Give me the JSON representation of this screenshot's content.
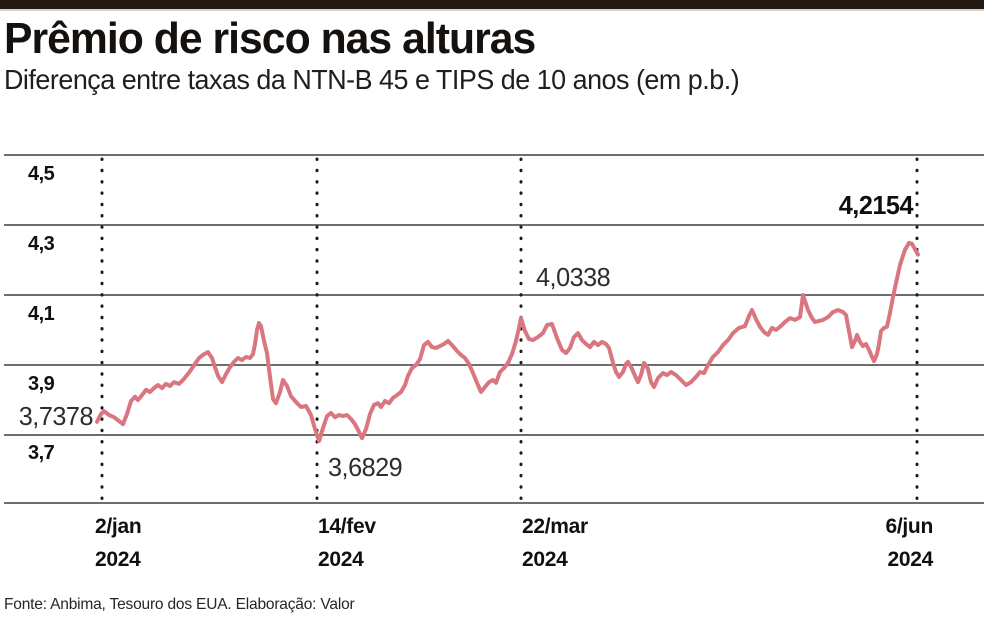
{
  "header": {
    "title": "Prêmio de risco nas alturas",
    "subtitle": "Diferença entre taxas da NTN-B 45 e TIPS de 10 anos (em p.b.)"
  },
  "footer": {
    "source": "Fonte: Anbima, Tesouro dos EUA. Elaboração: Valor"
  },
  "colors": {
    "line": "#d9767f",
    "grid": "#6e6e6e",
    "dotted_guides": "#1b1b1b",
    "top_bar": "#221813",
    "text": "#101010"
  },
  "chart_data": {
    "type": "line",
    "title": "Prêmio de risco nas alturas",
    "subtitle": "Diferença entre taxas da NTN-B 45 e TIPS de 10 anos (em p.b.)",
    "unit": "p.b.",
    "ylim": [
      3.5,
      4.55
    ],
    "grid": "horizontal solid gray lines; vertical dotted guides at labeled dates",
    "legend_position": "none",
    "y_ticks": [
      {
        "label": "4,5",
        "value": 4.5
      },
      {
        "label": "4,3",
        "value": 4.3
      },
      {
        "label": "4,1",
        "value": 4.1
      },
      {
        "label": "3,9",
        "value": 3.9
      },
      {
        "label": "3,7",
        "value": 3.7
      }
    ],
    "x_ticks": [
      {
        "label": "2/jan",
        "year": "2024"
      },
      {
        "label": "14/fev",
        "year": "2024"
      },
      {
        "label": "22/mar",
        "year": "2024"
      },
      {
        "label": "6/jun",
        "year": "2024"
      }
    ],
    "annotations": [
      {
        "text": "3,7378",
        "value": 3.7378,
        "at": "2/jan/2024",
        "style": "regular"
      },
      {
        "text": "3,6829",
        "value": 3.6829,
        "at": "14/fev/2024",
        "style": "regular"
      },
      {
        "text": "4,0338",
        "value": 4.0338,
        "at": "22/mar/2024",
        "style": "regular"
      },
      {
        "text": "4,2154",
        "value": 4.2154,
        "at": "6/jun/2024",
        "style": "bold"
      }
    ],
    "series": [
      {
        "name": "Diferença NTN-B 45 − TIPS 10 anos (em p.b.)",
        "color": "#d9767f",
        "points_format": "[x_px_along_time_axis, value]",
        "points": [
          [
            97,
            3.7378
          ],
          [
            101,
            3.76
          ],
          [
            104,
            3.768
          ],
          [
            109,
            3.757
          ],
          [
            114,
            3.751
          ],
          [
            119,
            3.74
          ],
          [
            123,
            3.731
          ],
          [
            127,
            3.76
          ],
          [
            131,
            3.797
          ],
          [
            135,
            3.809
          ],
          [
            138,
            3.8
          ],
          [
            142,
            3.814
          ],
          [
            146,
            3.829
          ],
          [
            150,
            3.823
          ],
          [
            154,
            3.834
          ],
          [
            158,
            3.843
          ],
          [
            162,
            3.834
          ],
          [
            166,
            3.846
          ],
          [
            170,
            3.84
          ],
          [
            174,
            3.851
          ],
          [
            179,
            3.846
          ],
          [
            183,
            3.857
          ],
          [
            187,
            3.871
          ],
          [
            191,
            3.886
          ],
          [
            195,
            3.903
          ],
          [
            199,
            3.92
          ],
          [
            203,
            3.929
          ],
          [
            208,
            3.937
          ],
          [
            212,
            3.92
          ],
          [
            215,
            3.894
          ],
          [
            218,
            3.869
          ],
          [
            222,
            3.851
          ],
          [
            226,
            3.874
          ],
          [
            230,
            3.894
          ],
          [
            234,
            3.909
          ],
          [
            238,
            3.92
          ],
          [
            242,
            3.914
          ],
          [
            246,
            3.923
          ],
          [
            250,
            3.92
          ],
          [
            253,
            3.931
          ],
          [
            255,
            3.96
          ],
          [
            257,
            4.0
          ],
          [
            259,
            4.02
          ],
          [
            261,
            4.011
          ],
          [
            264,
            3.969
          ],
          [
            267,
            3.934
          ],
          [
            270,
            3.866
          ],
          [
            273,
            3.803
          ],
          [
            276,
            3.791
          ],
          [
            280,
            3.823
          ],
          [
            283,
            3.857
          ],
          [
            287,
            3.84
          ],
          [
            291,
            3.811
          ],
          [
            296,
            3.794
          ],
          [
            301,
            3.78
          ],
          [
            306,
            3.783
          ],
          [
            311,
            3.757
          ],
          [
            315,
            3.717
          ],
          [
            319,
            3.6829
          ],
          [
            323,
            3.72
          ],
          [
            327,
            3.754
          ],
          [
            331,
            3.763
          ],
          [
            335,
            3.751
          ],
          [
            339,
            3.757
          ],
          [
            343,
            3.754
          ],
          [
            347,
            3.757
          ],
          [
            351,
            3.746
          ],
          [
            355,
            3.731
          ],
          [
            359,
            3.709
          ],
          [
            362,
            3.691
          ],
          [
            366,
            3.717
          ],
          [
            370,
            3.76
          ],
          [
            374,
            3.786
          ],
          [
            378,
            3.791
          ],
          [
            381,
            3.78
          ],
          [
            385,
            3.797
          ],
          [
            389,
            3.791
          ],
          [
            393,
            3.806
          ],
          [
            397,
            3.814
          ],
          [
            401,
            3.823
          ],
          [
            405,
            3.843
          ],
          [
            408,
            3.869
          ],
          [
            412,
            3.891
          ],
          [
            416,
            3.9
          ],
          [
            420,
            3.917
          ],
          [
            424,
            3.957
          ],
          [
            428,
            3.966
          ],
          [
            432,
            3.951
          ],
          [
            436,
            3.949
          ],
          [
            440,
            3.954
          ],
          [
            444,
            3.96
          ],
          [
            448,
            3.969
          ],
          [
            452,
            3.957
          ],
          [
            457,
            3.94
          ],
          [
            461,
            3.929
          ],
          [
            465,
            3.92
          ],
          [
            469,
            3.903
          ],
          [
            473,
            3.877
          ],
          [
            477,
            3.849
          ],
          [
            481,
            3.823
          ],
          [
            485,
            3.837
          ],
          [
            489,
            3.851
          ],
          [
            493,
            3.857
          ],
          [
            496,
            3.849
          ],
          [
            500,
            3.88
          ],
          [
            504,
            3.891
          ],
          [
            508,
            3.906
          ],
          [
            512,
            3.931
          ],
          [
            516,
            3.969
          ],
          [
            519,
            4.006
          ],
          [
            521,
            4.0338
          ],
          [
            525,
            3.997
          ],
          [
            529,
            3.974
          ],
          [
            533,
            3.971
          ],
          [
            538,
            3.98
          ],
          [
            543,
            3.991
          ],
          [
            547,
            4.014
          ],
          [
            552,
            4.017
          ],
          [
            557,
            3.977
          ],
          [
            562,
            3.943
          ],
          [
            566,
            3.934
          ],
          [
            570,
            3.949
          ],
          [
            574,
            3.98
          ],
          [
            578,
            3.991
          ],
          [
            582,
            3.971
          ],
          [
            586,
            3.96
          ],
          [
            590,
            3.951
          ],
          [
            594,
            3.966
          ],
          [
            598,
            3.957
          ],
          [
            602,
            3.966
          ],
          [
            606,
            3.96
          ],
          [
            609,
            3.949
          ],
          [
            613,
            3.906
          ],
          [
            616,
            3.88
          ],
          [
            619,
            3.866
          ],
          [
            623,
            3.88
          ],
          [
            626,
            3.903
          ],
          [
            628,
            3.909
          ],
          [
            632,
            3.889
          ],
          [
            635,
            3.869
          ],
          [
            638,
            3.851
          ],
          [
            641,
            3.871
          ],
          [
            644,
            3.906
          ],
          [
            648,
            3.889
          ],
          [
            651,
            3.851
          ],
          [
            654,
            3.837
          ],
          [
            658,
            3.863
          ],
          [
            663,
            3.877
          ],
          [
            667,
            3.871
          ],
          [
            671,
            3.88
          ],
          [
            676,
            3.871
          ],
          [
            681,
            3.857
          ],
          [
            686,
            3.843
          ],
          [
            691,
            3.851
          ],
          [
            696,
            3.866
          ],
          [
            700,
            3.88
          ],
          [
            704,
            3.877
          ],
          [
            708,
            3.9
          ],
          [
            713,
            3.923
          ],
          [
            718,
            3.937
          ],
          [
            723,
            3.957
          ],
          [
            728,
            3.971
          ],
          [
            733,
            3.991
          ],
          [
            739,
            4.006
          ],
          [
            745,
            4.011
          ],
          [
            749,
            4.04
          ],
          [
            752,
            4.057
          ],
          [
            756,
            4.031
          ],
          [
            760,
            4.009
          ],
          [
            764,
            3.994
          ],
          [
            768,
            3.986
          ],
          [
            772,
            4.006
          ],
          [
            776,
            4.0
          ],
          [
            780,
            4.009
          ],
          [
            785,
            4.023
          ],
          [
            790,
            4.034
          ],
          [
            795,
            4.029
          ],
          [
            800,
            4.037
          ],
          [
            803,
            4.1
          ],
          [
            808,
            4.057
          ],
          [
            812,
            4.034
          ],
          [
            815,
            4.023
          ],
          [
            819,
            4.026
          ],
          [
            823,
            4.029
          ],
          [
            828,
            4.037
          ],
          [
            833,
            4.051
          ],
          [
            838,
            4.057
          ],
          [
            843,
            4.051
          ],
          [
            846,
            4.043
          ],
          [
            849,
            3.997
          ],
          [
            852,
            3.951
          ],
          [
            855,
            3.969
          ],
          [
            857,
            3.986
          ],
          [
            860,
            3.966
          ],
          [
            863,
            3.954
          ],
          [
            866,
            3.96
          ],
          [
            869,
            3.943
          ],
          [
            872,
            3.923
          ],
          [
            874,
            3.911
          ],
          [
            877,
            3.931
          ],
          [
            879,
            3.96
          ],
          [
            881,
            3.997
          ],
          [
            884,
            4.006
          ],
          [
            887,
            4.009
          ],
          [
            890,
            4.049
          ],
          [
            893,
            4.094
          ],
          [
            896,
            4.134
          ],
          [
            900,
            4.186
          ],
          [
            905,
            4.229
          ],
          [
            909,
            4.249
          ],
          [
            912,
            4.246
          ],
          [
            915,
            4.231
          ],
          [
            918,
            4.2154
          ]
        ]
      }
    ],
    "source": "Fonte: Anbima, Tesouro dos EUA. Elaboração: Valor"
  }
}
